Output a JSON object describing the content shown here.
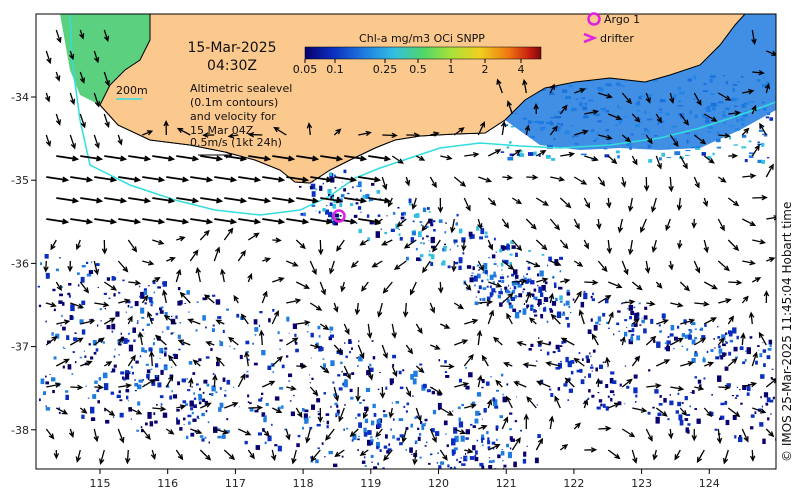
{
  "map": {
    "date": "15-Mar-2025",
    "time": "04:30Z",
    "contour_label": "200m",
    "altimetry_note": [
      "Altimetric sealevel",
      "(0.1m contours)",
      "and velocity for",
      "15 Mar 04Z",
      "0.5m/s (1kt 24h)"
    ],
    "legend": {
      "argo_label": "Argo 1",
      "drifter_label": "drifter",
      "argo_color": "#e020e0",
      "drifter_color": "#e020e0"
    },
    "colorbar": {
      "title": "Chl-a mg/m3 OCi SNPP",
      "ticks": [
        "0.05",
        "0.1",
        "0.25",
        "0.5",
        "1",
        "2",
        "4"
      ],
      "colors": [
        "#08006e",
        "#0a2fbf",
        "#1e7be0",
        "#33c0e0",
        "#4fd66a",
        "#a9e23a",
        "#f0d020",
        "#f07a10",
        "#c81e10",
        "#7a0a0a"
      ]
    },
    "x_ticks": [
      "115",
      "116",
      "117",
      "118",
      "119",
      "120",
      "121",
      "122",
      "123",
      "124"
    ],
    "y_ticks": [
      "-34",
      "-35",
      "-36",
      "-37",
      "-38"
    ],
    "credit": "© IMOS 25-Mar-2025 11:45:04 Hobart time",
    "colors": {
      "land": "#fbc88e",
      "contour": "#33dddd",
      "arrow": "#000000"
    }
  }
}
